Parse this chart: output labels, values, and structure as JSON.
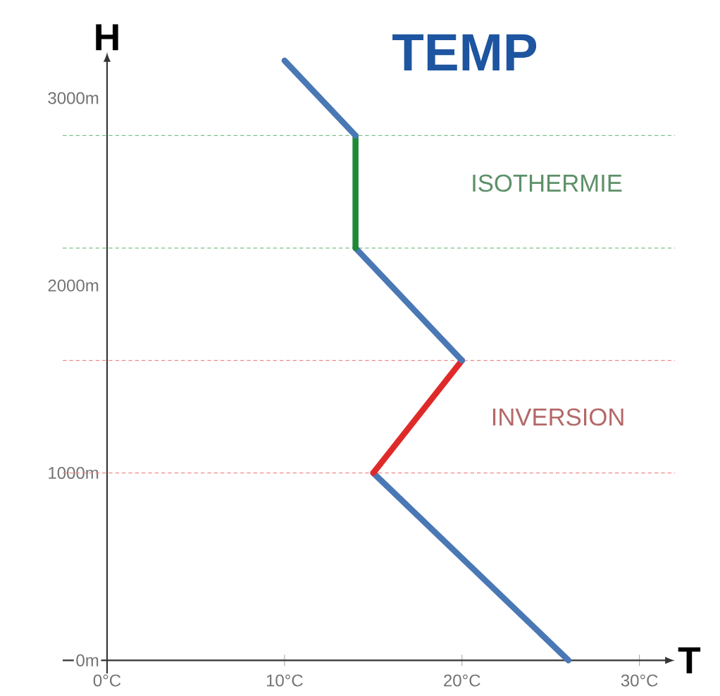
{
  "chart_data": {
    "type": "line",
    "title": "TEMP",
    "xlabel": "T",
    "ylabel": "H",
    "xlim": [
      -2.5,
      32
    ],
    "ylim": [
      -70,
      3200
    ],
    "xticks": [
      {
        "value": 0,
        "label": "0°C"
      },
      {
        "value": 10,
        "label": "10°C"
      },
      {
        "value": 20,
        "label": "20°C"
      },
      {
        "value": 30,
        "label": "30°C"
      }
    ],
    "yticks": [
      {
        "value": 0,
        "label": "0m"
      },
      {
        "value": 1000,
        "label": "1000m"
      },
      {
        "value": 2000,
        "label": "2000m"
      },
      {
        "value": 3000,
        "label": "3000m"
      }
    ],
    "series": [
      {
        "color": "#4a78b5",
        "x": [
          26,
          15
        ],
        "values": [
          0,
          1000
        ]
      },
      {
        "color": "#e02a2a",
        "x": [
          15,
          20
        ],
        "values": [
          1000,
          1600
        ]
      },
      {
        "color": "#4a78b5",
        "x": [
          20,
          14
        ],
        "values": [
          1600,
          2200
        ]
      },
      {
        "color": "#1f8a35",
        "x": [
          14,
          14
        ],
        "values": [
          2200,
          2800
        ]
      },
      {
        "color": "#4a78b5",
        "x": [
          14,
          10
        ],
        "values": [
          2800,
          3200
        ]
      }
    ],
    "ref_lines": [
      {
        "axis": "y",
        "value": 1000,
        "color": "#f08a8a",
        "line_style": "dashed"
      },
      {
        "axis": "y",
        "value": 1600,
        "color": "#f08a8a",
        "line_style": "dashed"
      },
      {
        "axis": "y",
        "value": 2200,
        "color": "#7cc08a",
        "line_style": "dashed"
      },
      {
        "axis": "y",
        "value": 2800,
        "color": "#7cc08a",
        "line_style": "dashed"
      }
    ],
    "annotations": [
      "ISOTHERMIE",
      "INVERSION"
    ],
    "grid": false,
    "marker": "none",
    "line_style": "solid"
  }
}
